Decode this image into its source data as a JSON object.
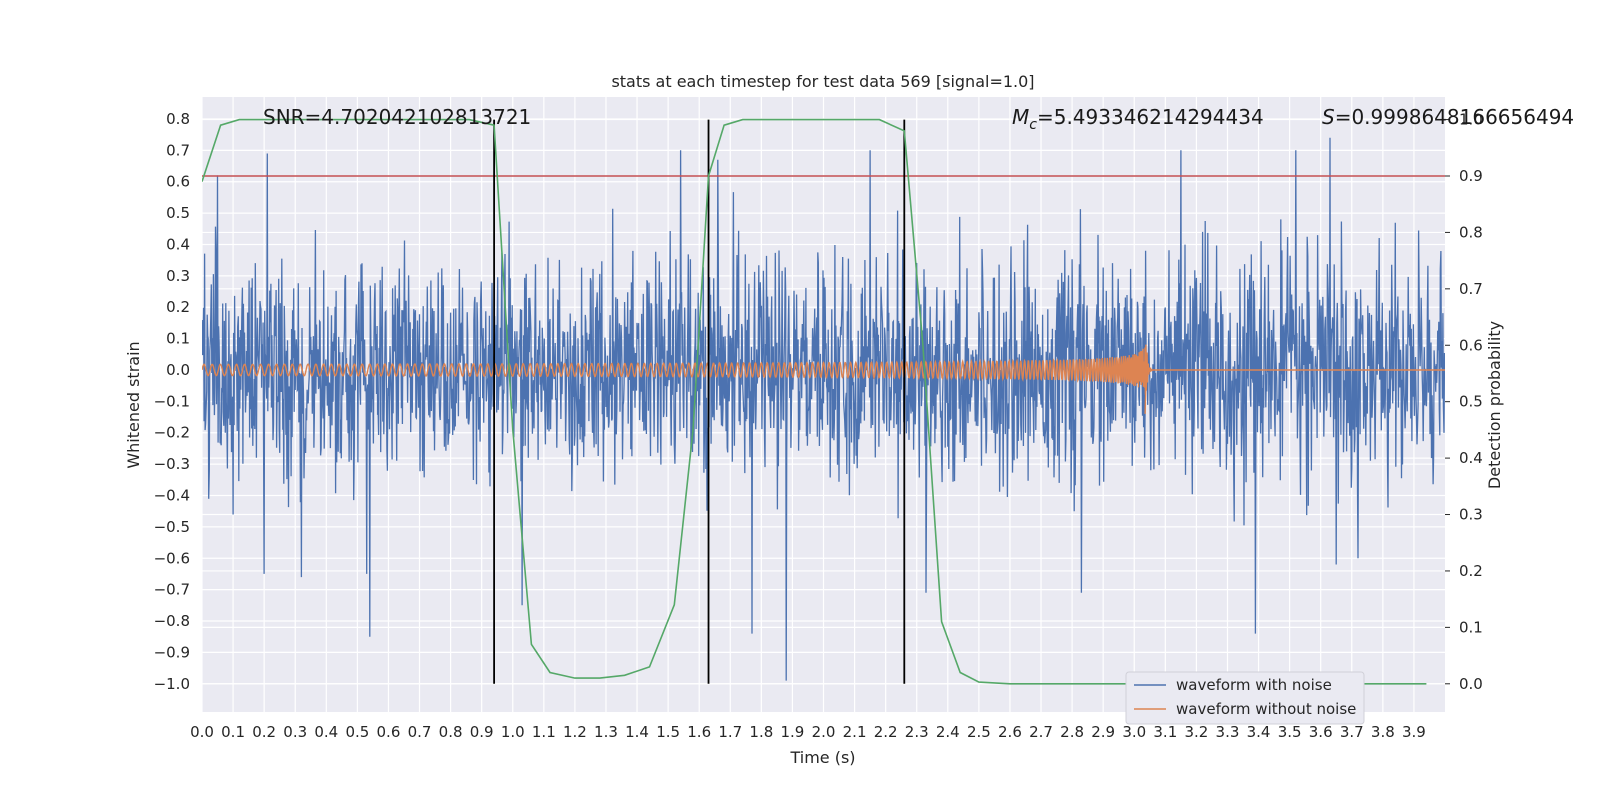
{
  "chart_data": {
    "type": "line",
    "title": "stats at each timestep for test data 569 [signal=1.0]",
    "xlabel": "Time (s)",
    "ylabel_left": "Whitened strain",
    "ylabel_right": "Detection probability",
    "xlim": [
      0.0,
      4.0
    ],
    "ylim_left": [
      -1.09,
      0.87
    ],
    "ylim_right": [
      -0.05,
      1.04
    ],
    "x_ticks": [
      "0.0",
      "0.1",
      "0.2",
      "0.3",
      "0.4",
      "0.5",
      "0.6",
      "0.7",
      "0.8",
      "0.9",
      "1.0",
      "1.1",
      "1.2",
      "1.3",
      "1.4",
      "1.5",
      "1.6",
      "1.7",
      "1.8",
      "1.9",
      "2.0",
      "2.1",
      "2.2",
      "2.3",
      "2.4",
      "2.5",
      "2.6",
      "2.7",
      "2.8",
      "2.9",
      "3.0",
      "3.1",
      "3.2",
      "3.3",
      "3.4",
      "3.5",
      "3.6",
      "3.7",
      "3.8",
      "3.9"
    ],
    "y_ticks_left": [
      "0.8",
      "0.7",
      "0.6",
      "0.5",
      "0.4",
      "0.3",
      "0.2",
      "0.1",
      "0.0",
      "−0.1",
      "−0.2",
      "−0.3",
      "−0.4",
      "−0.5",
      "−0.6",
      "−0.7",
      "−0.8",
      "−0.9",
      "−1.0"
    ],
    "y_ticks_right": [
      "1.0",
      "0.9",
      "0.8",
      "0.7",
      "0.6",
      "0.5",
      "0.4",
      "0.3",
      "0.2",
      "0.1",
      "0.0"
    ],
    "grid": true,
    "legend_position": "bottom-right",
    "annotations": {
      "snr": "SNR=4.702042102813721",
      "mc_symbol": "M",
      "mc_sub": "c",
      "mc_value": "=5.493346214294434",
      "s_symbol": "S",
      "s_value": "=0.9998648166656494"
    },
    "series": [
      {
        "name": "waveform with noise",
        "color": "#4c72b0",
        "axis": "left",
        "kind": "noise",
        "extremes": [
          [
            0.05,
            0.62
          ],
          [
            0.21,
            0.69
          ],
          [
            0.53,
            -0.65
          ],
          [
            0.2,
            -0.65
          ],
          [
            0.32,
            -0.66
          ],
          [
            0.54,
            -0.85
          ],
          [
            1.03,
            -0.75
          ],
          [
            1.54,
            0.7
          ],
          [
            1.66,
            0.67
          ],
          [
            1.77,
            -0.84
          ],
          [
            1.88,
            -0.99
          ],
          [
            2.15,
            0.7
          ],
          [
            2.33,
            -0.71
          ],
          [
            3.15,
            0.7
          ],
          [
            3.39,
            -0.84
          ],
          [
            3.63,
            0.74
          ],
          [
            3.52,
            0.7
          ],
          [
            3.65,
            -0.62
          ],
          [
            2.83,
            -0.71
          ],
          [
            3.72,
            -0.6
          ]
        ]
      },
      {
        "name": "waveform without noise",
        "color": "#dd8452",
        "axis": "left",
        "kind": "chirp",
        "t_merger": 3.04
      },
      {
        "name": "detection probability",
        "color": "#55a868",
        "axis": "right",
        "x": [
          0.0,
          0.06,
          0.12,
          0.2,
          0.3,
          0.5,
          0.7,
          0.86,
          0.94,
          1.0,
          1.06,
          1.12,
          1.2,
          1.28,
          1.36,
          1.44,
          1.52,
          1.58,
          1.63,
          1.68,
          1.74,
          1.8,
          2.0,
          2.18,
          2.26,
          2.32,
          2.38,
          2.44,
          2.5,
          2.6,
          2.8,
          3.0,
          3.2,
          3.4,
          3.6,
          3.8,
          3.94
        ],
        "y": [
          0.89,
          0.99,
          1.0,
          1.0,
          1.0,
          1.0,
          1.0,
          1.0,
          0.99,
          0.45,
          0.07,
          0.02,
          0.01,
          0.01,
          0.015,
          0.03,
          0.14,
          0.45,
          0.9,
          0.99,
          1.0,
          1.0,
          1.0,
          1.0,
          0.98,
          0.6,
          0.11,
          0.02,
          0.003,
          0.0,
          0.0,
          0.0,
          0.0,
          0.0,
          0.0,
          0.0,
          0.0
        ]
      }
    ],
    "threshold": {
      "value": 0.9,
      "axis": "right",
      "color": "#c44e52"
    },
    "vlines": [
      0.94,
      1.63,
      2.26
    ]
  }
}
